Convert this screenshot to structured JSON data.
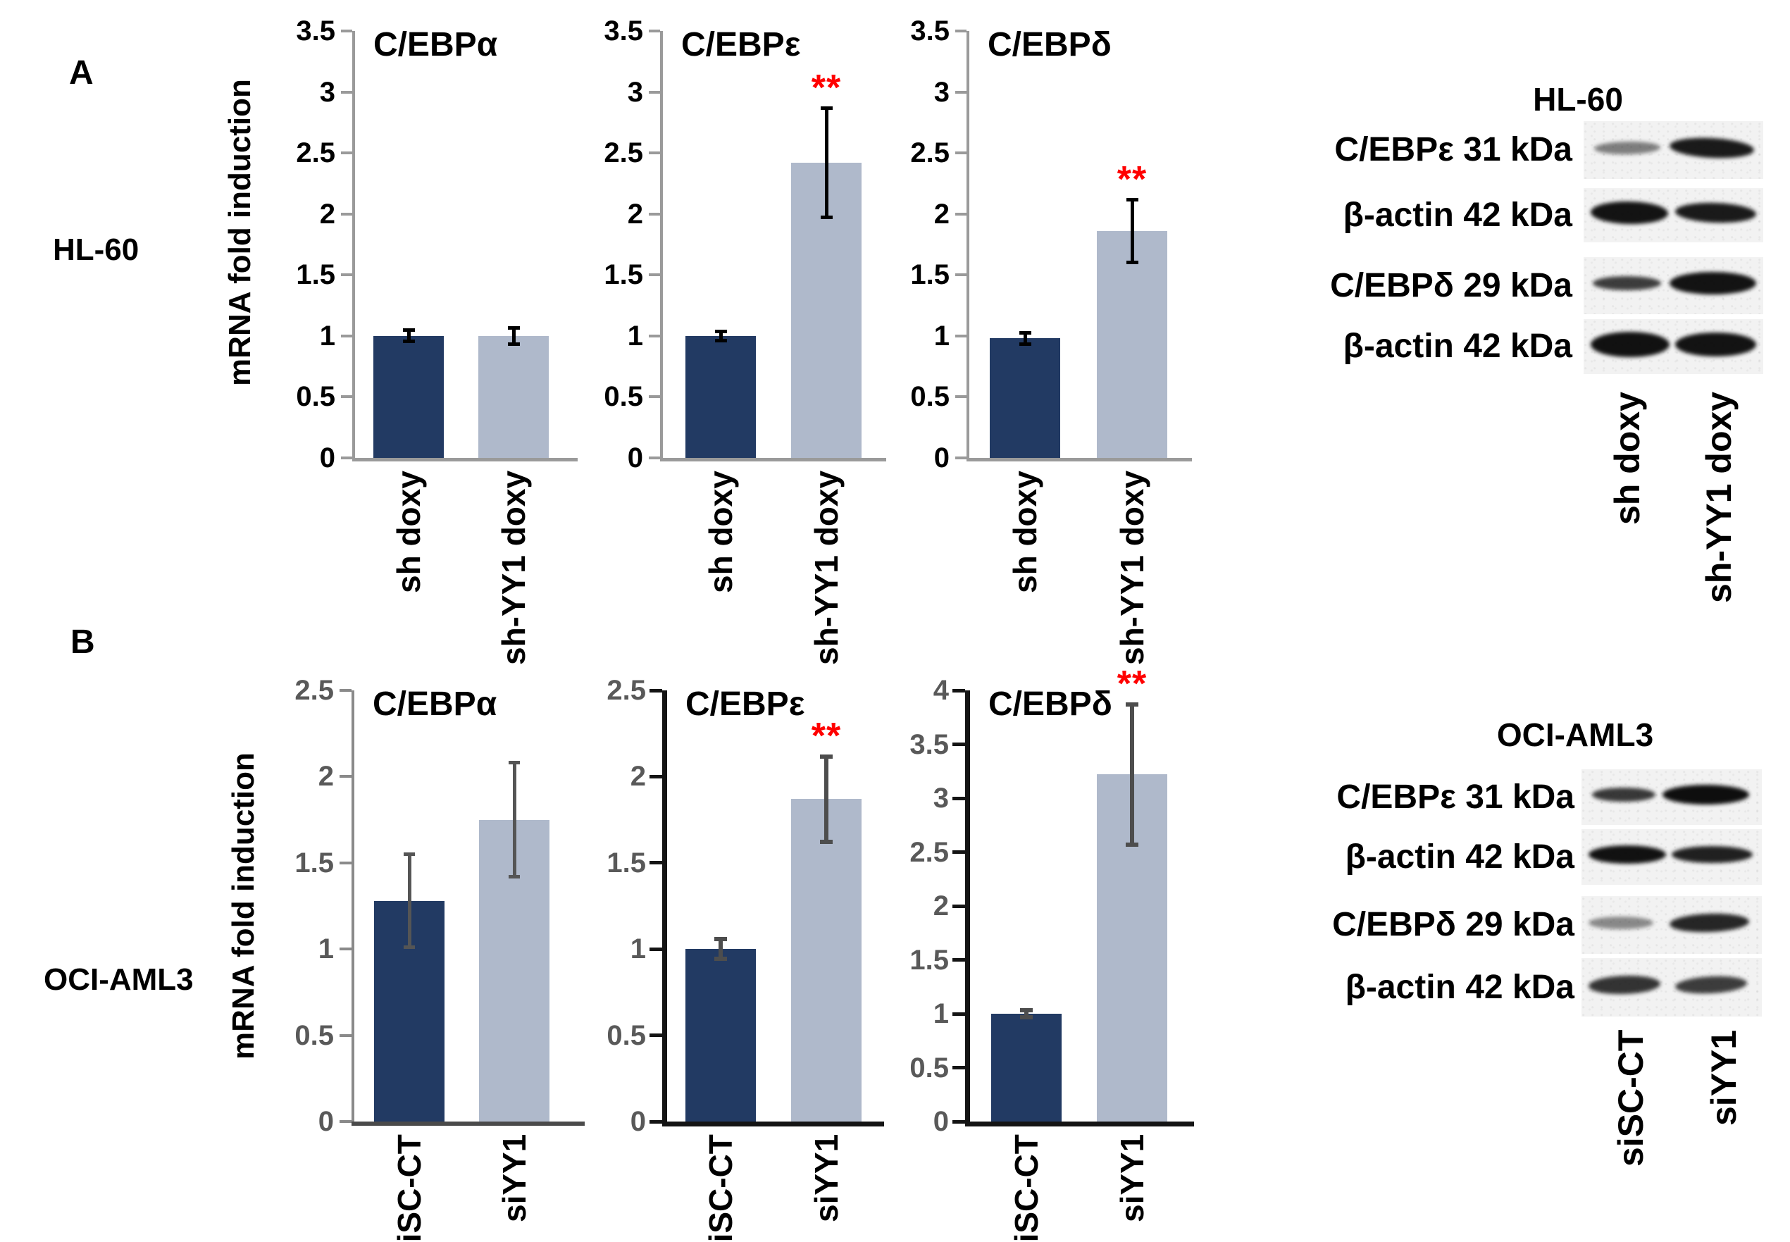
{
  "colors": {
    "bar_dark": "#223A63",
    "bar_light": "#AFB9CB",
    "significance_star": "#FF0000"
  },
  "panel_a": {
    "label": "A",
    "cell_line": "HL-60",
    "y_axis_label": "mRNA fold induction"
  },
  "panel_b": {
    "label": "B",
    "cell_line": "OCI-AML3",
    "y_axis_label": "mRNA fold induction"
  },
  "chart_data": [
    {
      "id": "hl60-cebpa",
      "panel": "A",
      "type": "bar",
      "title": "C/EBPα",
      "categories": [
        "sh doxy",
        "sh-YY1 doxy"
      ],
      "values": [
        1.0,
        1.0
      ],
      "errors": [
        0.06,
        0.08
      ],
      "significance": [
        "",
        ""
      ],
      "ylim": [
        0,
        3.5
      ],
      "ytick_step": 0.5,
      "ylabel": "mRNA fold induction",
      "grid": false
    },
    {
      "id": "hl60-cebpe",
      "panel": "A",
      "type": "bar",
      "title": "C/EBPε",
      "categories": [
        "sh doxy",
        "sh-YY1 doxy"
      ],
      "values": [
        1.0,
        2.42
      ],
      "errors": [
        0.05,
        0.46
      ],
      "significance": [
        "",
        "**"
      ],
      "ylim": [
        0,
        3.5
      ],
      "ytick_step": 0.5,
      "ylabel": "mRNA fold induction",
      "grid": false
    },
    {
      "id": "hl60-cebpd",
      "panel": "A",
      "type": "bar",
      "title": "C/EBPδ",
      "categories": [
        "sh doxy",
        "sh-YY1 doxy"
      ],
      "values": [
        0.98,
        1.86
      ],
      "errors": [
        0.06,
        0.27
      ],
      "significance": [
        "",
        "**"
      ],
      "ylim": [
        0,
        3.5
      ],
      "ytick_step": 0.5,
      "ylabel": "mRNA fold induction",
      "grid": false
    },
    {
      "id": "oci-cebpa",
      "panel": "B",
      "type": "bar",
      "title": "C/EBPα",
      "categories": [
        "siSC-CT",
        "siYY1"
      ],
      "values": [
        1.28,
        1.75
      ],
      "errors": [
        0.28,
        0.34
      ],
      "significance": [
        "",
        ""
      ],
      "ylim": [
        0,
        2.5
      ],
      "ytick_step": 0.5,
      "ylabel": "mRNA fold induction",
      "grid": false
    },
    {
      "id": "oci-cebpe",
      "panel": "B",
      "type": "bar",
      "title": "C/EBPε",
      "categories": [
        "siSC-CT",
        "siYY1"
      ],
      "values": [
        1.0,
        1.87
      ],
      "errors": [
        0.07,
        0.26
      ],
      "significance": [
        "",
        "**"
      ],
      "ylim": [
        0,
        2.5
      ],
      "ytick_step": 0.5,
      "ylabel": "mRNA fold induction",
      "grid": false
    },
    {
      "id": "oci-cebpd",
      "panel": "B",
      "type": "bar",
      "title": "C/EBPδ",
      "categories": [
        "siSC-CT",
        "siYY1"
      ],
      "values": [
        1.0,
        3.22
      ],
      "errors": [
        0.05,
        0.67
      ],
      "significance": [
        "",
        "**"
      ],
      "ylim": [
        0,
        4
      ],
      "ytick_step": 0.5,
      "ylabel": "mRNA fold induction",
      "grid": false
    }
  ],
  "blots": [
    {
      "id": "hl60",
      "title": "HL-60",
      "lanes": [
        "sh doxy",
        "sh-YY1 doxy"
      ],
      "rows": [
        {
          "label": "C/EBPε 31 kDa",
          "bands": [
            {
              "x": 0.06,
              "w": 0.37,
              "i": 0.5,
              "t": 9,
              "r": -1
            },
            {
              "x": 0.48,
              "w": 0.47,
              "i": 0.93,
              "t": 14,
              "r": 3
            }
          ]
        },
        {
          "label": "β-actin 42 kDa",
          "bands": [
            {
              "x": 0.04,
              "w": 0.43,
              "i": 0.96,
              "t": 16,
              "r": 1
            },
            {
              "x": 0.51,
              "w": 0.45,
              "i": 0.93,
              "t": 14,
              "r": 2
            }
          ]
        },
        {
          "label": "C/EBPδ 29 kDa",
          "bands": [
            {
              "x": 0.05,
              "w": 0.38,
              "i": 0.78,
              "t": 10,
              "r": 0
            },
            {
              "x": 0.48,
              "w": 0.48,
              "i": 0.96,
              "t": 16,
              "r": 0
            }
          ]
        },
        {
          "label": "β-actin 42 kDa",
          "bands": [
            {
              "x": 0.04,
              "w": 0.44,
              "i": 0.97,
              "t": 18,
              "r": 0
            },
            {
              "x": 0.51,
              "w": 0.45,
              "i": 0.96,
              "t": 17,
              "r": 0
            }
          ]
        }
      ]
    },
    {
      "id": "oci",
      "title": "OCI-AML3",
      "lanes": [
        "siSC-CT",
        "siYY1"
      ],
      "rows": [
        {
          "label": "C/EBPε 31 kDa",
          "bands": [
            {
              "x": 0.06,
              "w": 0.35,
              "i": 0.8,
              "t": 10,
              "r": 0
            },
            {
              "x": 0.45,
              "w": 0.48,
              "i": 0.98,
              "t": 14,
              "r": 0
            }
          ]
        },
        {
          "label": "β-actin 42 kDa",
          "bands": [
            {
              "x": 0.04,
              "w": 0.43,
              "i": 0.97,
              "t": 13,
              "r": 0
            },
            {
              "x": 0.5,
              "w": 0.45,
              "i": 0.9,
              "t": 12,
              "r": 0
            }
          ]
        },
        {
          "label": "C/EBPδ 29 kDa",
          "bands": [
            {
              "x": 0.04,
              "w": 0.36,
              "i": 0.45,
              "t": 9,
              "r": 0
            },
            {
              "x": 0.49,
              "w": 0.44,
              "i": 0.88,
              "t": 13,
              "r": -2
            }
          ]
        },
        {
          "label": "β-actin 42 kDa",
          "bands": [
            {
              "x": 0.04,
              "w": 0.4,
              "i": 0.82,
              "t": 13,
              "r": -2
            },
            {
              "x": 0.52,
              "w": 0.4,
              "i": 0.78,
              "t": 12,
              "r": -3
            }
          ]
        }
      ]
    }
  ]
}
